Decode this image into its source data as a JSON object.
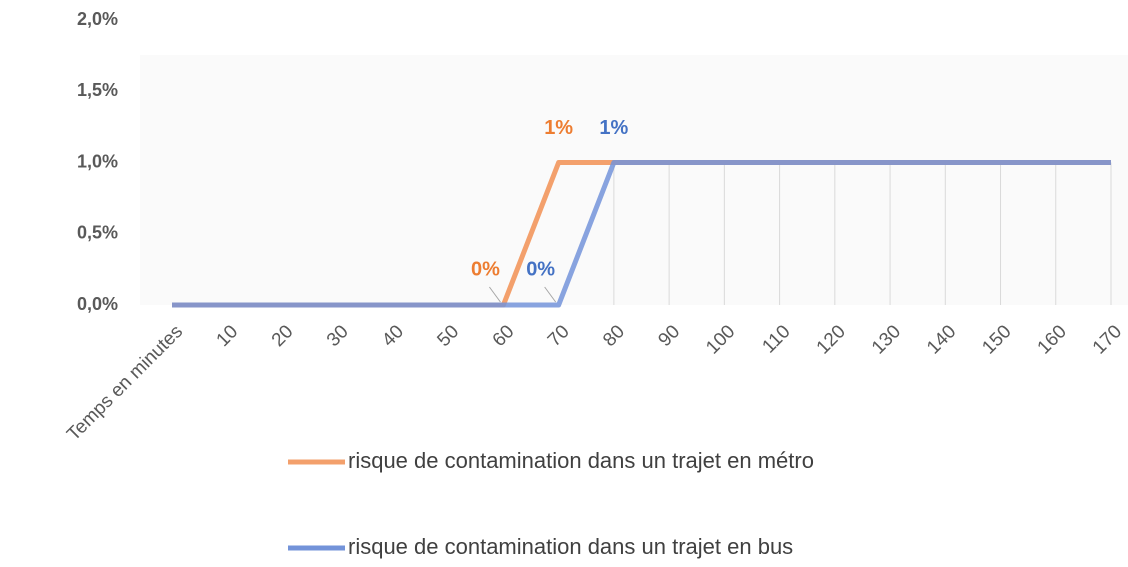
{
  "chart_data": {
    "type": "line",
    "categories": [
      "Temps en minutes",
      "10",
      "20",
      "30",
      "40",
      "50",
      "60",
      "70",
      "80",
      "90",
      "100",
      "110",
      "120",
      "130",
      "140",
      "150",
      "160",
      "170"
    ],
    "series": [
      {
        "name": "risque de contamination dans un trajet en métro",
        "color": "#f3a06c",
        "label_color": "#ed7d31",
        "values": [
          0,
          0,
          0,
          0,
          0,
          0,
          0,
          1,
          1,
          1,
          1,
          1,
          1,
          1,
          1,
          1,
          1,
          1
        ],
        "value_labels": [
          null,
          null,
          null,
          null,
          null,
          null,
          "0%",
          "1%",
          null,
          null,
          null,
          null,
          null,
          null,
          null,
          null,
          null,
          null
        ]
      },
      {
        "name": "risque de contamination dans un trajet en bus",
        "color": "#7393d9",
        "label_color": "#4472c4",
        "values": [
          0,
          0,
          0,
          0,
          0,
          0,
          0,
          0,
          1,
          1,
          1,
          1,
          1,
          1,
          1,
          1,
          1,
          1
        ],
        "value_labels": [
          null,
          null,
          null,
          null,
          null,
          null,
          null,
          "0%",
          "1%",
          null,
          null,
          null,
          null,
          null,
          null,
          null,
          null,
          null
        ]
      }
    ],
    "ylim": [
      0,
      2
    ],
    "yticks": [
      {
        "value": 0,
        "label": "0,0%"
      },
      {
        "value": 0.5,
        "label": "0,5%"
      },
      {
        "value": 1,
        "label": "1,0%"
      },
      {
        "value": 1.5,
        "label": "1,5%"
      },
      {
        "value": 2,
        "label": "2,0%"
      }
    ],
    "legend": "bottom"
  }
}
